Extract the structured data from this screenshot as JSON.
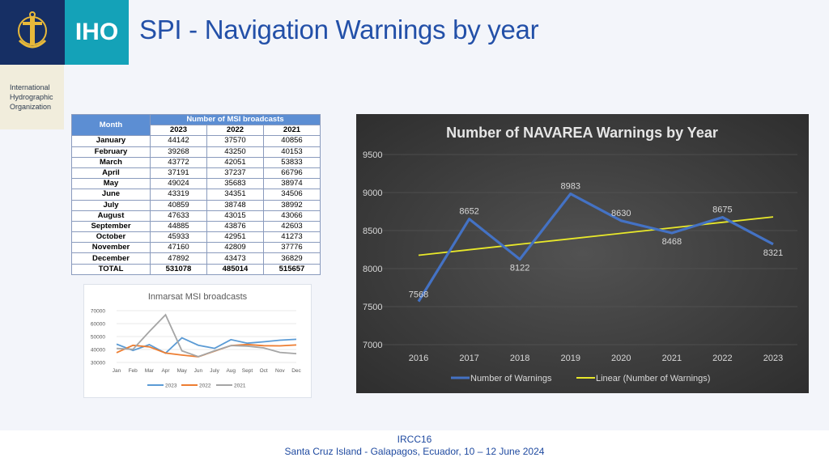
{
  "header": {
    "iho_label": "IHO",
    "org_lines": [
      "International",
      "Hydrographic",
      "Organization"
    ],
    "title": "SPI - Navigation Warnings by year"
  },
  "footer": {
    "line1": "IRCC16",
    "line2": "Santa Cruz Island - Galapagos, Ecuador, 10 – 12 June 2024"
  },
  "msi_table": {
    "col_month": "Month",
    "col_group": "Number of MSI broadcasts",
    "years": [
      "2023",
      "2022",
      "2021"
    ],
    "rows": [
      {
        "month": "January",
        "values": [
          "44142",
          "37570",
          "40856"
        ]
      },
      {
        "month": "February",
        "values": [
          "39268",
          "43250",
          "40153"
        ]
      },
      {
        "month": "March",
        "values": [
          "43772",
          "42051",
          "53833"
        ]
      },
      {
        "month": "April",
        "values": [
          "37191",
          "37237",
          "66796"
        ]
      },
      {
        "month": "May",
        "values": [
          "49024",
          "35683",
          "38974"
        ]
      },
      {
        "month": "June",
        "values": [
          "43319",
          "34351",
          "34506"
        ]
      },
      {
        "month": "July",
        "values": [
          "40859",
          "38748",
          "38992"
        ]
      },
      {
        "month": "August",
        "values": [
          "47633",
          "43015",
          "43066"
        ]
      },
      {
        "month": "September",
        "values": [
          "44885",
          "43876",
          "42603"
        ]
      },
      {
        "month": "October",
        "values": [
          "45933",
          "42951",
          "41273"
        ]
      },
      {
        "month": "November",
        "values": [
          "47160",
          "42809",
          "37776"
        ]
      },
      {
        "month": "December",
        "values": [
          "47892",
          "43473",
          "36829"
        ]
      }
    ],
    "total": {
      "month": "TOTAL",
      "values": [
        "531078",
        "485014",
        "515657"
      ]
    },
    "header_color": "#5c8ed3"
  },
  "chart_data": [
    {
      "type": "line",
      "title": "Inmarsat MSI broadcasts",
      "categories": [
        "Jan",
        "Feb",
        "Mar",
        "Apr",
        "May",
        "Jun",
        "July",
        "Aug",
        "Sept",
        "Oct",
        "Nov",
        "Dec"
      ],
      "yticks": [
        "30000",
        "40000",
        "50000",
        "60000",
        "70000"
      ],
      "ylim": [
        30000,
        70000
      ],
      "legend_position": "bottom",
      "series": [
        {
          "name": "2023",
          "color": "#5b9bd5",
          "values": [
            44142,
            39268,
            43772,
            37191,
            49024,
            43319,
            40859,
            47633,
            44885,
            45933,
            47160,
            47892
          ]
        },
        {
          "name": "2022",
          "color": "#ed7d31",
          "values": [
            37570,
            43250,
            42051,
            37237,
            35683,
            34351,
            38748,
            43015,
            43876,
            42951,
            42809,
            43473
          ]
        },
        {
          "name": "2021",
          "color": "#a5a5a5",
          "values": [
            40856,
            40153,
            53833,
            66796,
            38974,
            34506,
            38992,
            43066,
            42603,
            41273,
            37776,
            36829
          ]
        }
      ]
    },
    {
      "type": "line",
      "title": "Number of NAVAREA Warnings by Year",
      "categories": [
        "2016",
        "2017",
        "2018",
        "2019",
        "2020",
        "2021",
        "2022",
        "2023"
      ],
      "yticks": [
        "7000",
        "7500",
        "8000",
        "8500",
        "9000",
        "9500"
      ],
      "ylim": [
        7000,
        9500
      ],
      "legend_position": "bottom",
      "series": [
        {
          "name": "Number of Warnings",
          "color": "#4472c4",
          "values": [
            7568,
            8652,
            8122,
            8983,
            8630,
            8468,
            8675,
            8321
          ],
          "labels": [
            "7568",
            "8652",
            "8122",
            "8983",
            "8630",
            "8468",
            "8675",
            "8321"
          ]
        },
        {
          "name": "Linear (Number of Warnings)",
          "color": "#e8e82a",
          "trendline": true,
          "values": [
            8176,
            8248,
            8320,
            8392,
            8464,
            8536,
            8608,
            8680
          ]
        }
      ]
    }
  ]
}
